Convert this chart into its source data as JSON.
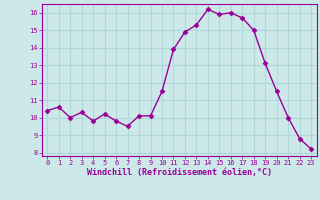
{
  "x": [
    0,
    1,
    2,
    3,
    4,
    5,
    6,
    7,
    8,
    9,
    10,
    11,
    12,
    13,
    14,
    15,
    16,
    17,
    18,
    19,
    20,
    21,
    22,
    23
  ],
  "y": [
    10.4,
    10.6,
    10.0,
    10.3,
    9.8,
    10.2,
    9.8,
    9.5,
    10.1,
    10.1,
    11.5,
    13.9,
    14.9,
    15.3,
    16.2,
    15.9,
    16.0,
    15.7,
    15.0,
    13.1,
    11.5,
    10.0,
    8.8,
    8.2
  ],
  "line_color": "#990099",
  "marker": "D",
  "marker_size": 2.5,
  "line_width": 1.0,
  "bg_color": "#cce8e8",
  "grid_color": "#b0d8d8",
  "xlabel": "Windchill (Refroidissement éolien,°C)",
  "xlabel_color": "#990099",
  "tick_color": "#990099",
  "ylim": [
    7.8,
    16.5
  ],
  "yticks": [
    8,
    9,
    10,
    11,
    12,
    13,
    14,
    15,
    16
  ],
  "xticks": [
    0,
    1,
    2,
    3,
    4,
    5,
    6,
    7,
    8,
    9,
    10,
    11,
    12,
    13,
    14,
    15,
    16,
    17,
    18,
    19,
    20,
    21,
    22,
    23
  ]
}
